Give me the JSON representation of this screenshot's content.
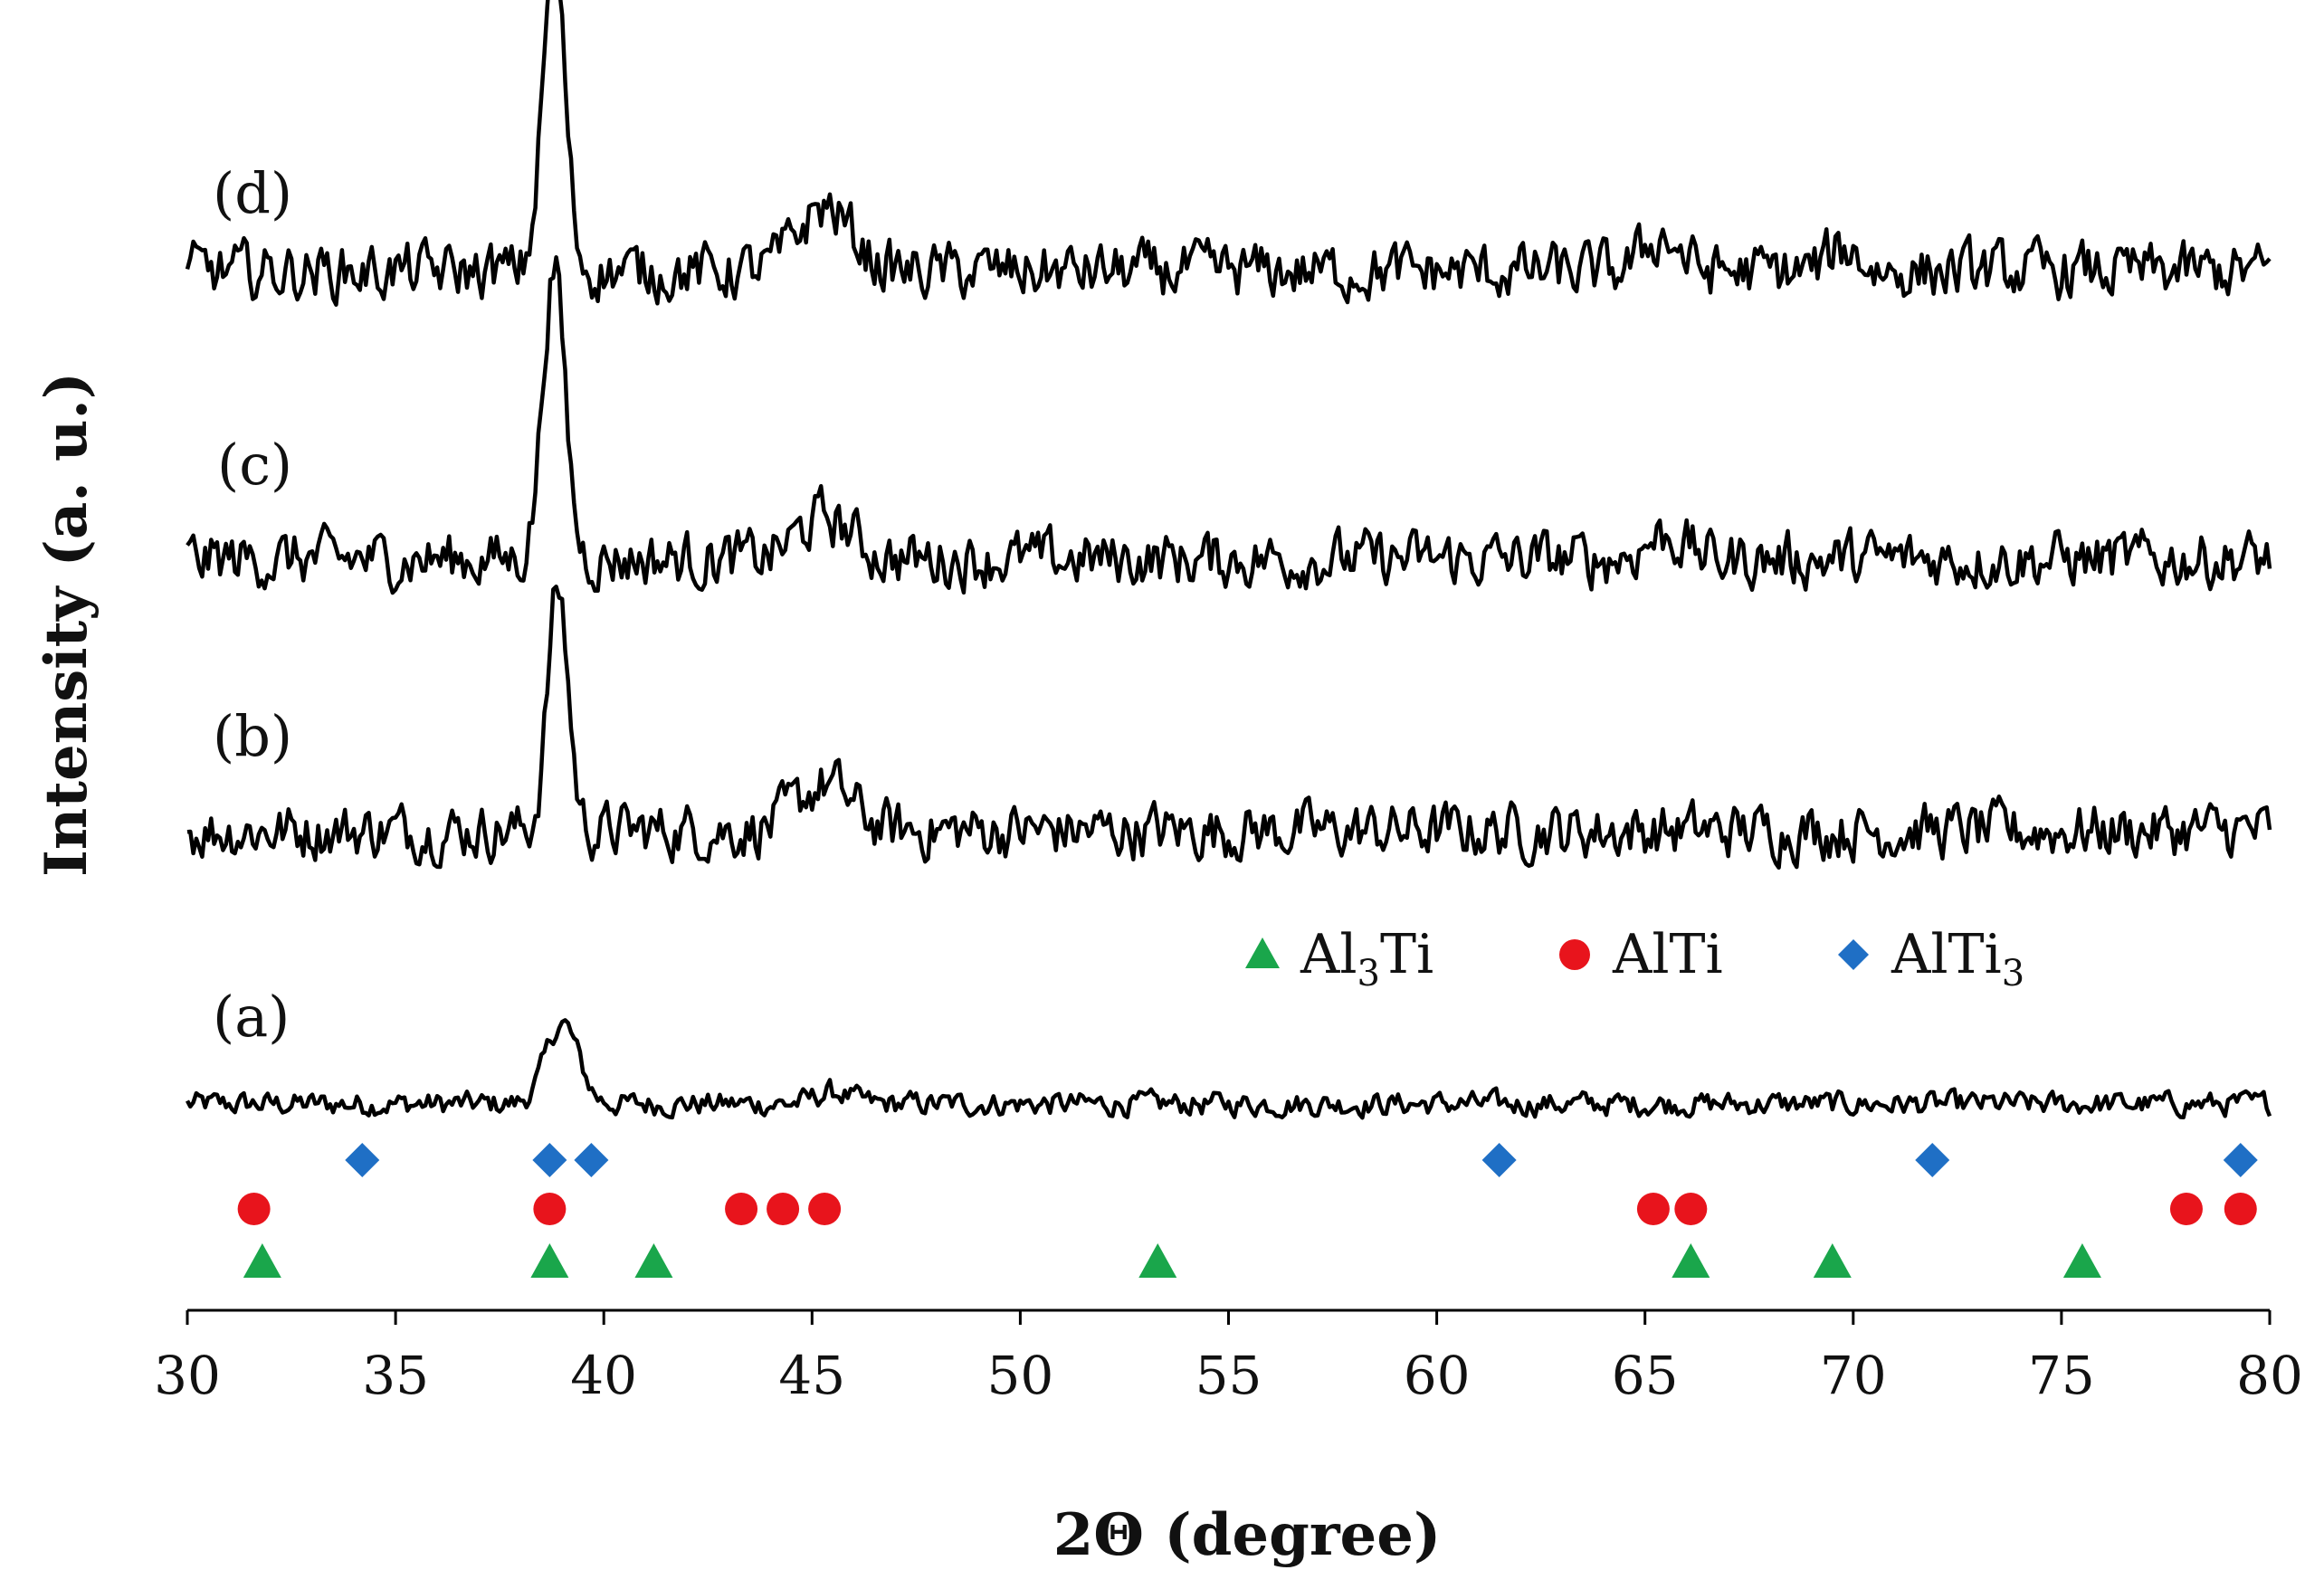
{
  "chart_data": {
    "type": "line",
    "title": "",
    "xlabel": "2Θ (degree)",
    "ylabel": "Intensity (a. u.)",
    "xlim": [
      30,
      80
    ],
    "xticks": [
      "30",
      "35",
      "40",
      "45",
      "50",
      "55",
      "60",
      "65",
      "70",
      "75",
      "80"
    ],
    "series": [
      {
        "name": "(a)",
        "baseline": 0,
        "noise": 0.055,
        "peaks": [
          {
            "x": 39.0,
            "h": 0.35,
            "w": 0.55
          },
          {
            "x": 45.5,
            "h": 0.05,
            "w": 0.6
          }
        ]
      },
      {
        "name": "(b)",
        "baseline": 1,
        "noise": 0.13,
        "peaks": [
          {
            "x": 38.9,
            "h": 1.05,
            "w": 0.35
          },
          {
            "x": 45.3,
            "h": 0.2,
            "w": 0.9
          }
        ]
      },
      {
        "name": "(c)",
        "baseline": 2,
        "noise": 0.13,
        "peaks": [
          {
            "x": 38.8,
            "h": 1.25,
            "w": 0.38
          },
          {
            "x": 45.3,
            "h": 0.18,
            "w": 0.9
          },
          {
            "x": 65.5,
            "h": 0.1,
            "w": 0.7
          }
        ]
      },
      {
        "name": "(d)",
        "baseline": 3,
        "noise": 0.13,
        "peaks": [
          {
            "x": 38.8,
            "h": 1.35,
            "w": 0.38
          },
          {
            "x": 45.3,
            "h": 0.28,
            "w": 0.9
          },
          {
            "x": 65.4,
            "h": 0.15,
            "w": 0.6
          },
          {
            "x": 69.8,
            "h": 0.1,
            "w": 0.5
          }
        ]
      }
    ],
    "phase_markers": [
      {
        "phase": "AlTi3",
        "legend_label": "AlTi",
        "legend_sub": "3",
        "marker": "diamond",
        "color": "#1f6fc5",
        "positions": [
          34.2,
          38.7,
          39.7,
          61.5,
          71.9,
          79.3
        ]
      },
      {
        "phase": "AlTi",
        "legend_label": "AlTi",
        "legend_sub": "",
        "marker": "circle",
        "color": "#e8141c",
        "positions": [
          31.6,
          38.7,
          43.3,
          44.3,
          45.3,
          65.2,
          66.1,
          78.0,
          79.3
        ]
      },
      {
        "phase": "Al3Ti",
        "legend_label": "Al",
        "legend_sub": "3",
        "legend_suffix": "Ti",
        "marker": "triangle",
        "color": "#1aa64b",
        "positions": [
          31.8,
          38.7,
          41.2,
          53.3,
          66.1,
          69.5,
          75.5
        ]
      }
    ],
    "legend_position": "top-right of lowest pattern",
    "grid": false
  }
}
